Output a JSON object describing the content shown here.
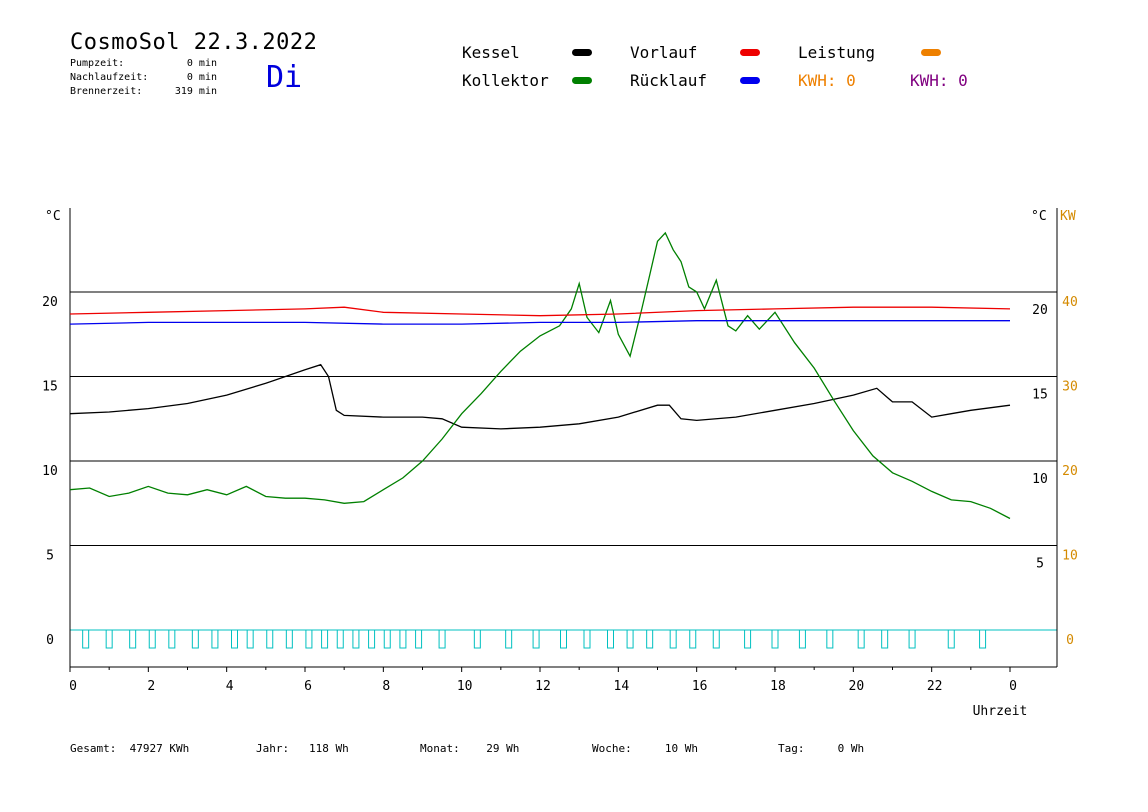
{
  "header": {
    "title": "CosmoSol 22.3.2022",
    "weekday": "Di",
    "stats": [
      {
        "label": "Pumpzeit:",
        "value": "0 min"
      },
      {
        "label": "Nachlaufzeit:",
        "value": "0 min"
      },
      {
        "label": "Brennerzeit:",
        "value": "319 min"
      }
    ]
  },
  "legend": {
    "kessel": {
      "label": "Kessel",
      "color": "#000000"
    },
    "kollektor": {
      "label": "Kollektor",
      "color": "#008000"
    },
    "vorlauf": {
      "label": "Vorlauf",
      "color": "#ee0000"
    },
    "ruecklauf": {
      "label": "Rücklauf",
      "color": "#0000ee"
    },
    "leistung": {
      "label": "Leistung",
      "color": "#ee8000"
    },
    "kwh1": {
      "label": "KWH: 0",
      "color": "#ee8000"
    },
    "kwh2": {
      "label": "KWH: 0",
      "color": "#800080"
    }
  },
  "footer": {
    "gesamt": "Gesamt:  47927 KWh",
    "jahr": "Jahr:   118 Wh",
    "monat": "Monat:    29 Wh",
    "woche": "Woche:     10 Wh",
    "tag": "Tag:     0 Wh"
  },
  "chart_data": {
    "type": "line",
    "xlabel": "Uhrzeit",
    "ylabel_left": "°C",
    "ylabel_right_temp": "°C",
    "ylabel_right_power": "KW",
    "xlim": [
      0,
      24
    ],
    "ylim": [
      -2,
      25
    ],
    "x_ticks": [
      "0",
      "2",
      "4",
      "6",
      "8",
      "10",
      "12",
      "14",
      "16",
      "18",
      "20",
      "22",
      "0"
    ],
    "y_ticks_left": [
      "0",
      "5",
      "10",
      "15",
      "20"
    ],
    "y_ticks_right_temp": [
      "5",
      "10",
      "15",
      "20"
    ],
    "y_ticks_right_power": [
      "0",
      "10",
      "20",
      "30",
      "40"
    ],
    "grid": "horizontal",
    "series": [
      {
        "name": "Kessel",
        "color": "#000000",
        "x": [
          0,
          1,
          2,
          3,
          4,
          5,
          6,
          6.4,
          6.6,
          6.8,
          7,
          8,
          9,
          9.5,
          10,
          11,
          12,
          13,
          14,
          15,
          15.3,
          15.6,
          16,
          17,
          18,
          19,
          20,
          20.6,
          21,
          21.5,
          22,
          22.5,
          23,
          24
        ],
        "y": [
          12.8,
          12.9,
          13.1,
          13.4,
          13.9,
          14.6,
          15.4,
          15.7,
          15.0,
          13.0,
          12.7,
          12.6,
          12.6,
          12.5,
          12.0,
          11.9,
          12.0,
          12.2,
          12.6,
          13.3,
          13.3,
          12.5,
          12.4,
          12.6,
          13.0,
          13.4,
          13.9,
          14.3,
          13.5,
          13.5,
          12.6,
          12.8,
          13.0,
          13.3
        ]
      },
      {
        "name": "Kollektor",
        "color": "#008000",
        "x": [
          0,
          0.5,
          1,
          1.5,
          2,
          2.5,
          3,
          3.5,
          4,
          4.5,
          5,
          5.5,
          6,
          6.5,
          7,
          7.5,
          8,
          8.5,
          9,
          9.5,
          10,
          10.5,
          11,
          11.5,
          12,
          12.5,
          12.8,
          13,
          13.2,
          13.5,
          13.8,
          14,
          14.3,
          14.6,
          14.8,
          15,
          15.2,
          15.4,
          15.6,
          15.8,
          16,
          16.2,
          16.5,
          16.8,
          17,
          17.3,
          17.6,
          18,
          18.5,
          19,
          19.5,
          20,
          20.5,
          21,
          21.5,
          22,
          22.5,
          23,
          23.5,
          24
        ],
        "y": [
          8.3,
          8.4,
          7.9,
          8.1,
          8.5,
          8.1,
          8.0,
          8.3,
          8.0,
          8.5,
          7.9,
          7.8,
          7.8,
          7.7,
          7.5,
          7.6,
          8.3,
          9.0,
          10.0,
          11.3,
          12.8,
          14.0,
          15.3,
          16.5,
          17.4,
          18.0,
          19.0,
          20.5,
          18.5,
          17.6,
          19.5,
          17.5,
          16.2,
          19.0,
          21.0,
          23.0,
          23.5,
          22.5,
          21.8,
          20.3,
          20.0,
          19.0,
          20.7,
          18.0,
          17.7,
          18.6,
          17.8,
          18.8,
          17.0,
          15.5,
          13.6,
          11.8,
          10.3,
          9.3,
          8.8,
          8.2,
          7.7,
          7.6,
          7.2,
          6.6
        ]
      },
      {
        "name": "Vorlauf",
        "color": "#ee0000",
        "x": [
          0,
          2,
          4,
          6,
          7,
          8,
          10,
          12,
          14,
          16,
          18,
          20,
          22,
          24
        ],
        "y": [
          18.7,
          18.8,
          18.9,
          19.0,
          19.1,
          18.8,
          18.7,
          18.6,
          18.7,
          18.9,
          19.0,
          19.1,
          19.1,
          19.0
        ]
      },
      {
        "name": "Rücklauf",
        "color": "#0000ee",
        "x": [
          0,
          2,
          4,
          6,
          8,
          10,
          12,
          14,
          16,
          18,
          20,
          22,
          24
        ],
        "y": [
          18.1,
          18.2,
          18.2,
          18.2,
          18.1,
          18.1,
          18.2,
          18.2,
          18.3,
          18.3,
          18.3,
          18.3,
          18.3
        ]
      }
    ],
    "pump_pulses": {
      "color": "#00c0c0",
      "x": [
        0.4,
        1.0,
        1.6,
        2.1,
        2.6,
        3.2,
        3.7,
        4.2,
        4.6,
        5.1,
        5.6,
        6.1,
        6.5,
        6.9,
        7.3,
        7.7,
        8.1,
        8.5,
        8.9,
        9.5,
        10.4,
        11.2,
        11.9,
        12.6,
        13.2,
        13.8,
        14.3,
        14.8,
        15.4,
        15.9,
        16.5,
        17.3,
        18.0,
        18.7,
        19.4,
        20.2,
        20.8,
        21.5,
        22.5,
        23.3
      ]
    }
  }
}
